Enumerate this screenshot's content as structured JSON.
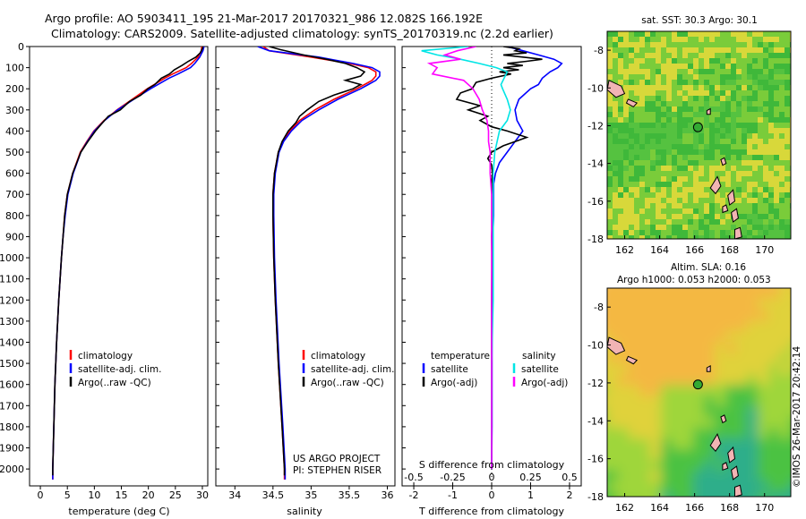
{
  "header": {
    "line1": "Argo profile: AO 5903411_195 21-Mar-2017 20170321_986 12.082S 166.192E",
    "line2": "Climatology: CARS2009. Satellite-adjusted climatology: synTS_20170319.nc (2.2d earlier)"
  },
  "colors": {
    "climatology": "#ff0000",
    "satellite": "#0000ff",
    "argo": "#000000",
    "argo_salinity_diff": "#ff00ff",
    "satellite_salinity_diff": "#00e5e5",
    "land": "#f2b4b4"
  },
  "panels": {
    "temperature": {
      "xlabel": "temperature (deg C)",
      "legend": [
        "climatology",
        "satellite-adj. clim.",
        "Argo(..raw -QC)"
      ]
    },
    "salinity": {
      "xlabel": "salinity",
      "legend": [
        "climatology",
        "satellite-adj. clim.",
        "Argo(..raw -QC)"
      ],
      "project": "US ARGO PROJECT",
      "pi": "PI: STEPHEN RISER"
    },
    "difference": {
      "top_label": "S difference from climatology",
      "xlabel": "T difference from climatology",
      "legend_temp_title": "temperature",
      "legend_sal_title": "salinity",
      "legend_temp": [
        "satellite",
        "Argo(-adj)"
      ],
      "legend_sal": [
        "satellite",
        "Argo(-adj)"
      ]
    },
    "sst_map": {
      "title": "sat. SST: 30.3 Argo: 30.1",
      "icon": "float-position-marker-icon"
    },
    "sla_map": {
      "title1": "Altim. SLA: 0.16",
      "title2": "Argo h1000: 0.053 h2000: 0.053",
      "icon": "float-position-marker-icon"
    },
    "credit": "©IMOS 26-Mar-2017 20:42:14"
  },
  "chart_data": [
    {
      "type": "line",
      "name": "temperature",
      "xlabel": "temperature (deg C)",
      "ylabel": "",
      "xlim": [
        -2,
        31
      ],
      "ylim": [
        2080,
        0
      ],
      "xticks": [
        0,
        5,
        10,
        15,
        20,
        25,
        30
      ],
      "yticks": [
        0,
        100,
        200,
        300,
        400,
        500,
        600,
        700,
        800,
        900,
        1000,
        1100,
        1200,
        1300,
        1400,
        1500,
        1600,
        1700,
        1800,
        1900,
        2000
      ],
      "grid": false,
      "legend": "lower-left",
      "series": [
        {
          "name": "climatology",
          "color": "#ff0000",
          "depth": [
            0,
            20,
            50,
            80,
            100,
            130,
            150,
            200,
            250,
            300,
            350,
            400,
            450,
            500,
            600,
            700,
            800,
            900,
            1000,
            1200,
            1400,
            1600,
            1800,
            2000,
            2050
          ],
          "values": [
            29.9,
            29.8,
            29.2,
            28.0,
            27.0,
            24.5,
            23.0,
            19.8,
            17.0,
            14.2,
            11.8,
            9.9,
            8.6,
            7.4,
            6.0,
            5.0,
            4.5,
            4.2,
            3.9,
            3.4,
            3.0,
            2.7,
            2.5,
            2.3,
            2.3
          ]
        },
        {
          "name": "satellite-adj. clim.",
          "color": "#0000ff",
          "depth": [
            0,
            20,
            50,
            80,
            100,
            130,
            150,
            200,
            250,
            300,
            350,
            400,
            450,
            500,
            600,
            700,
            800,
            900,
            1000,
            1200,
            1400,
            1600,
            1800,
            2000,
            2050
          ],
          "values": [
            30.3,
            30.1,
            29.5,
            28.6,
            27.8,
            25.5,
            23.8,
            20.4,
            17.3,
            14.3,
            11.9,
            10.0,
            8.7,
            7.5,
            6.1,
            5.1,
            4.6,
            4.2,
            3.9,
            3.4,
            3.0,
            2.7,
            2.5,
            2.3,
            2.3
          ]
        },
        {
          "name": "Argo(..raw -QC)",
          "color": "#000000",
          "depth": [
            0,
            10,
            30,
            50,
            70,
            90,
            110,
            130,
            150,
            180,
            200,
            230,
            260,
            300,
            330,
            370,
            400,
            450,
            500,
            600,
            700,
            800,
            900,
            1000,
            1200,
            1400,
            1600,
            1800,
            2000,
            2030
          ],
          "values": [
            30.1,
            30.0,
            29.6,
            28.8,
            27.4,
            26.2,
            24.8,
            23.9,
            22.4,
            21.2,
            19.9,
            18.6,
            16.5,
            14.8,
            12.6,
            11.2,
            10.2,
            8.8,
            7.5,
            6.0,
            5.0,
            4.5,
            4.2,
            3.9,
            3.4,
            3.0,
            2.7,
            2.5,
            2.3,
            2.3
          ]
        }
      ]
    },
    {
      "type": "line",
      "name": "salinity",
      "xlabel": "salinity",
      "ylabel": "",
      "xlim": [
        33.75,
        36.1
      ],
      "ylim": [
        2080,
        0
      ],
      "xticks": [
        34,
        34.5,
        35,
        35.5,
        36
      ],
      "grid": false,
      "legend": "lower-right",
      "series": [
        {
          "name": "climatology",
          "color": "#ff0000",
          "depth": [
            0,
            20,
            50,
            80,
            100,
            120,
            140,
            160,
            180,
            200,
            250,
            300,
            350,
            400,
            450,
            500,
            600,
            700,
            800,
            1000,
            1200,
            1500,
            1800,
            2000,
            2050
          ],
          "values": [
            34.37,
            34.45,
            35.0,
            35.5,
            35.75,
            35.85,
            35.85,
            35.8,
            35.7,
            35.6,
            35.3,
            35.05,
            34.85,
            34.72,
            34.63,
            34.57,
            34.52,
            34.5,
            34.5,
            34.51,
            34.53,
            34.57,
            34.62,
            34.65,
            34.65
          ]
        },
        {
          "name": "satellite-adj. clim.",
          "color": "#0000ff",
          "depth": [
            0,
            20,
            50,
            80,
            100,
            120,
            140,
            160,
            180,
            200,
            250,
            300,
            350,
            400,
            450,
            500,
            600,
            700,
            800,
            1000,
            1200,
            1500,
            1800,
            2000,
            2050
          ],
          "values": [
            34.3,
            34.45,
            35.1,
            35.55,
            35.8,
            35.9,
            35.9,
            35.85,
            35.75,
            35.65,
            35.35,
            35.1,
            34.88,
            34.74,
            34.64,
            34.58,
            34.53,
            34.51,
            34.51,
            34.52,
            34.54,
            34.58,
            34.63,
            34.66,
            34.66
          ]
        },
        {
          "name": "Argo(..raw -QC)",
          "color": "#000000",
          "depth": [
            0,
            15,
            40,
            60,
            80,
            100,
            120,
            140,
            160,
            180,
            200,
            230,
            260,
            300,
            330,
            360,
            400,
            450,
            500,
            600,
            700,
            800,
            1000,
            1200,
            1500,
            1800,
            2000,
            2030
          ],
          "values": [
            34.45,
            34.6,
            34.9,
            35.2,
            35.45,
            35.6,
            35.7,
            35.65,
            35.45,
            35.65,
            35.55,
            35.3,
            35.1,
            34.95,
            34.85,
            34.8,
            34.7,
            34.62,
            34.57,
            34.52,
            34.5,
            34.5,
            34.51,
            34.53,
            34.57,
            34.62,
            34.65,
            34.65
          ]
        }
      ]
    },
    {
      "type": "line",
      "name": "difference",
      "xlabel": "T difference from climatology",
      "x2label": "S difference from climatology",
      "xlim": [
        -2.3,
        2.3
      ],
      "x2lim": [
        -0.575,
        0.575
      ],
      "ylim": [
        2080,
        0
      ],
      "xticks": [
        -2,
        -1,
        0,
        1,
        2
      ],
      "x2ticks": [
        -0.5,
        -0.25,
        0,
        0.25,
        0.5
      ],
      "grid": false,
      "legend": "lower-center",
      "series": [
        {
          "name": "satellite",
          "group": "temperature",
          "axis": "T",
          "color": "#0000ff",
          "depth": [
            0,
            20,
            40,
            60,
            80,
            100,
            120,
            150,
            180,
            200,
            250,
            300,
            350,
            400,
            450,
            500,
            550,
            600,
            650,
            700,
            800,
            900,
            1000,
            1200,
            1400,
            1600,
            1800,
            2000
          ],
          "values": [
            0.4,
            0.8,
            1.2,
            1.6,
            1.8,
            1.7,
            1.5,
            1.3,
            1.2,
            1.0,
            0.7,
            0.6,
            0.65,
            0.8,
            0.6,
            0.4,
            0.2,
            0.1,
            0.05,
            0.05,
            0.05,
            0.03,
            0.02,
            0.02,
            0.01,
            0.01,
            0.01,
            0.0
          ]
        },
        {
          "name": "Argo(-adj)",
          "group": "temperature",
          "axis": "T",
          "color": "#000000",
          "depth": [
            0,
            10,
            20,
            30,
            40,
            50,
            60,
            70,
            80,
            90,
            100,
            110,
            120,
            130,
            150,
            170,
            200,
            220,
            250,
            280,
            300,
            330,
            350,
            380,
            400,
            430,
            450,
            470,
            500,
            530,
            560,
            600,
            650,
            700,
            800,
            900,
            1000,
            1200,
            1400,
            1600,
            1800,
            2000
          ],
          "values": [
            0.3,
            0.7,
            0.6,
            0.9,
            0.3,
            0.8,
            1.3,
            0.9,
            0.4,
            0.8,
            0.3,
            0.7,
            0.2,
            0.5,
            0.0,
            -0.4,
            -0.5,
            -0.8,
            -0.9,
            -0.3,
            -0.6,
            -0.1,
            -0.3,
            0.0,
            0.4,
            0.9,
            0.6,
            0.3,
            0.0,
            -0.1,
            0.0,
            0.02,
            0.0,
            0.01,
            0.02,
            0.0,
            0.01,
            0.0,
            0.0,
            0.0,
            0.0,
            0.0
          ]
        },
        {
          "name": "satellite",
          "group": "salinity",
          "axis": "S",
          "color": "#00e5e5",
          "depth": [
            0,
            20,
            40,
            60,
            80,
            100,
            120,
            150,
            180,
            200,
            250,
            300,
            350,
            400,
            500,
            600,
            700,
            800,
            1000,
            1200,
            1500,
            1800,
            2000
          ],
          "values": [
            -0.15,
            -0.45,
            -0.35,
            -0.2,
            -0.08,
            0.03,
            0.1,
            0.08,
            0.06,
            0.07,
            0.1,
            0.12,
            0.1,
            0.05,
            0.02,
            0.01,
            0.01,
            0.01,
            0.01,
            0.01,
            0.0,
            0.0,
            0.0
          ]
        },
        {
          "name": "Argo(-adj)",
          "group": "salinity",
          "axis": "S",
          "color": "#ff00ff",
          "depth": [
            0,
            20,
            40,
            60,
            80,
            100,
            130,
            160,
            200,
            250,
            300,
            350,
            400,
            450,
            500,
            600,
            700,
            800,
            1000,
            1200,
            1500,
            1800,
            2000
          ],
          "values": [
            -0.1,
            -0.22,
            -0.3,
            -0.2,
            -0.4,
            -0.35,
            -0.38,
            -0.18,
            -0.12,
            -0.08,
            -0.06,
            -0.03,
            -0.02,
            -0.02,
            -0.01,
            -0.01,
            0.0,
            0.0,
            0.0,
            0.0,
            0.0,
            0.0,
            0.0
          ]
        }
      ]
    },
    {
      "type": "heatmap",
      "name": "sat. SST map",
      "title": "sat. SST: 30.3 Argo: 30.1",
      "xlim": [
        161,
        171.5
      ],
      "ylim": [
        -18,
        -7
      ],
      "xticks": [
        162,
        164,
        166,
        168,
        170
      ],
      "yticks": [
        -8,
        -10,
        -12,
        -14,
        -16,
        -18
      ],
      "float_position": {
        "lon": 166.192,
        "lat": -12.082
      }
    },
    {
      "type": "heatmap",
      "name": "Altim. SLA map",
      "title": "Altim. SLA: 0.16",
      "subtitle": "Argo h1000: 0.053 h2000: 0.053",
      "xlim": [
        161,
        171.5
      ],
      "ylim": [
        -18,
        -7
      ],
      "xticks": [
        162,
        164,
        166,
        168,
        170
      ],
      "yticks": [
        -8,
        -10,
        -12,
        -14,
        -16,
        -18
      ],
      "float_position": {
        "lon": 166.192,
        "lat": -12.082
      }
    }
  ]
}
